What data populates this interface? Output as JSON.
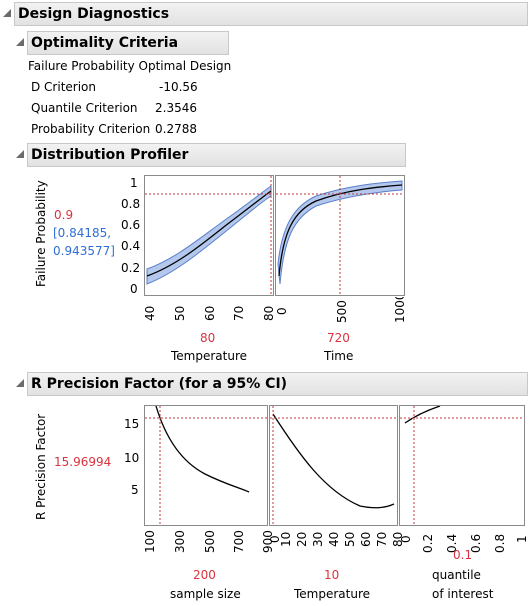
{
  "design_diagnostics": {
    "title": "Design Diagnostics"
  },
  "optimality": {
    "title": "Optimality Criteria",
    "design_name": "Failure Probability Optimal Design",
    "rows": [
      {
        "label": "D Criterion",
        "value": "-10.56"
      },
      {
        "label": "Quantile Criterion",
        "value": "2.3546"
      },
      {
        "label": "Probability Criterion",
        "value": "0.2788"
      }
    ]
  },
  "distribution_profiler": {
    "title": "Distribution Profiler",
    "y_label": "Failure Probability",
    "y_value": "0.9",
    "y_ci_line1": "[0.84185,",
    "y_ci_line2": "0.943577]",
    "y_ticks": [
      "0",
      "0.2",
      "0.4",
      "0.6",
      "0.8",
      "1"
    ],
    "temperature": {
      "label": "Temperature",
      "value": "80",
      "ticks": [
        "40",
        "50",
        "60",
        "70",
        "80"
      ]
    },
    "time": {
      "label": "Time",
      "value": "720",
      "ticks": [
        "0",
        "500",
        "1000"
      ]
    }
  },
  "precision": {
    "title": "R Precision Factor (for a 95% CI)",
    "y_label": "R Precision Factor",
    "y_value": "15.96994",
    "y_ticks": [
      "5",
      "10",
      "15"
    ],
    "sample_size": {
      "label": "sample size",
      "value": "200",
      "ticks": [
        "100",
        "300",
        "500",
        "700",
        "900"
      ]
    },
    "temperature": {
      "label": "Temperature",
      "value": "10",
      "ticks": [
        "0",
        "10",
        "20",
        "30",
        "40",
        "50",
        "60",
        "70",
        "80"
      ]
    },
    "quantile": {
      "label_line1": "quantile",
      "label_line2": "of interest",
      "value": "0.1",
      "ticks": [
        "0",
        "0.2",
        "0.4",
        "0.6",
        "0.8",
        "1"
      ]
    }
  },
  "colors": {
    "current_value": "#d9333f",
    "ci_band": "#b4c8ee",
    "ci_text": "#2f6fd6"
  }
}
